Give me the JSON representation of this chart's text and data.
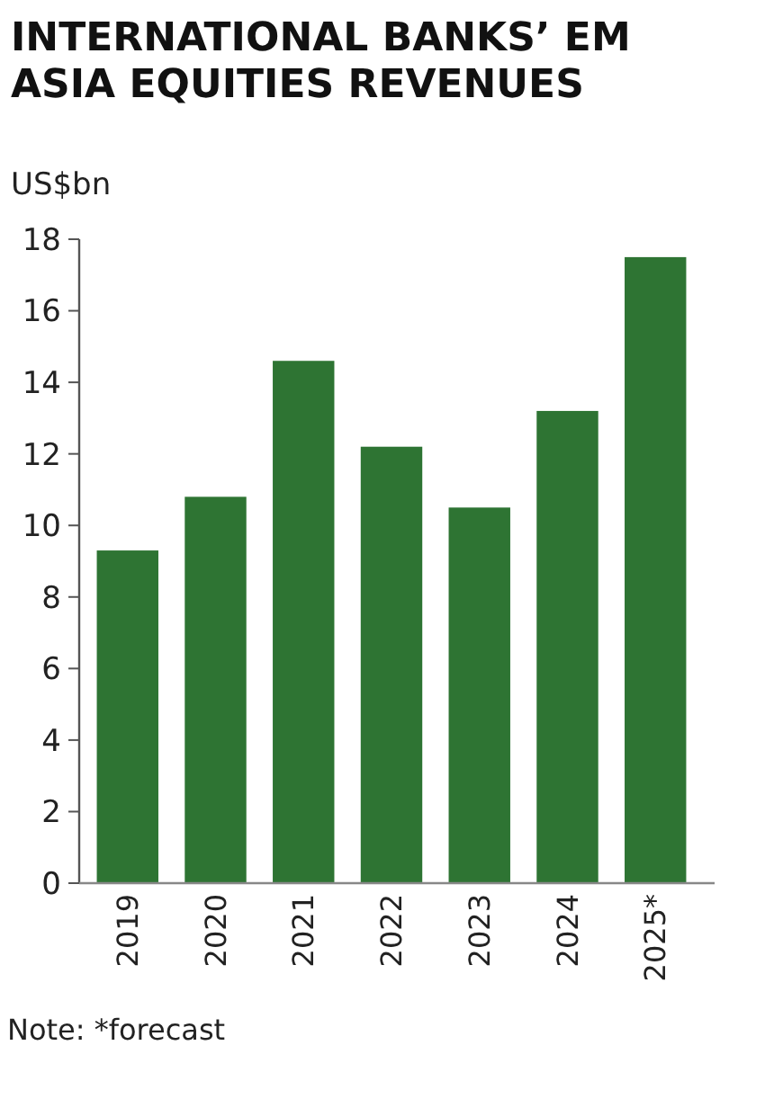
{
  "chart_data": {
    "type": "bar",
    "title": "INTERNATIONAL BANKS’ EM ASIA EQUITIES REVENUES",
    "ylabel": "US$bn",
    "categories": [
      "2019",
      "2020",
      "2021",
      "2022",
      "2023",
      "2024",
      "2025*"
    ],
    "values": [
      9.3,
      10.8,
      14.6,
      12.2,
      10.5,
      13.2,
      17.5
    ],
    "color": "#2e7433",
    "ylim": [
      0,
      18
    ],
    "yticks": [
      0,
      2,
      4,
      6,
      8,
      10,
      12,
      14,
      16,
      18
    ],
    "grid": false,
    "annotations": [
      "Note: *forecast"
    ]
  }
}
